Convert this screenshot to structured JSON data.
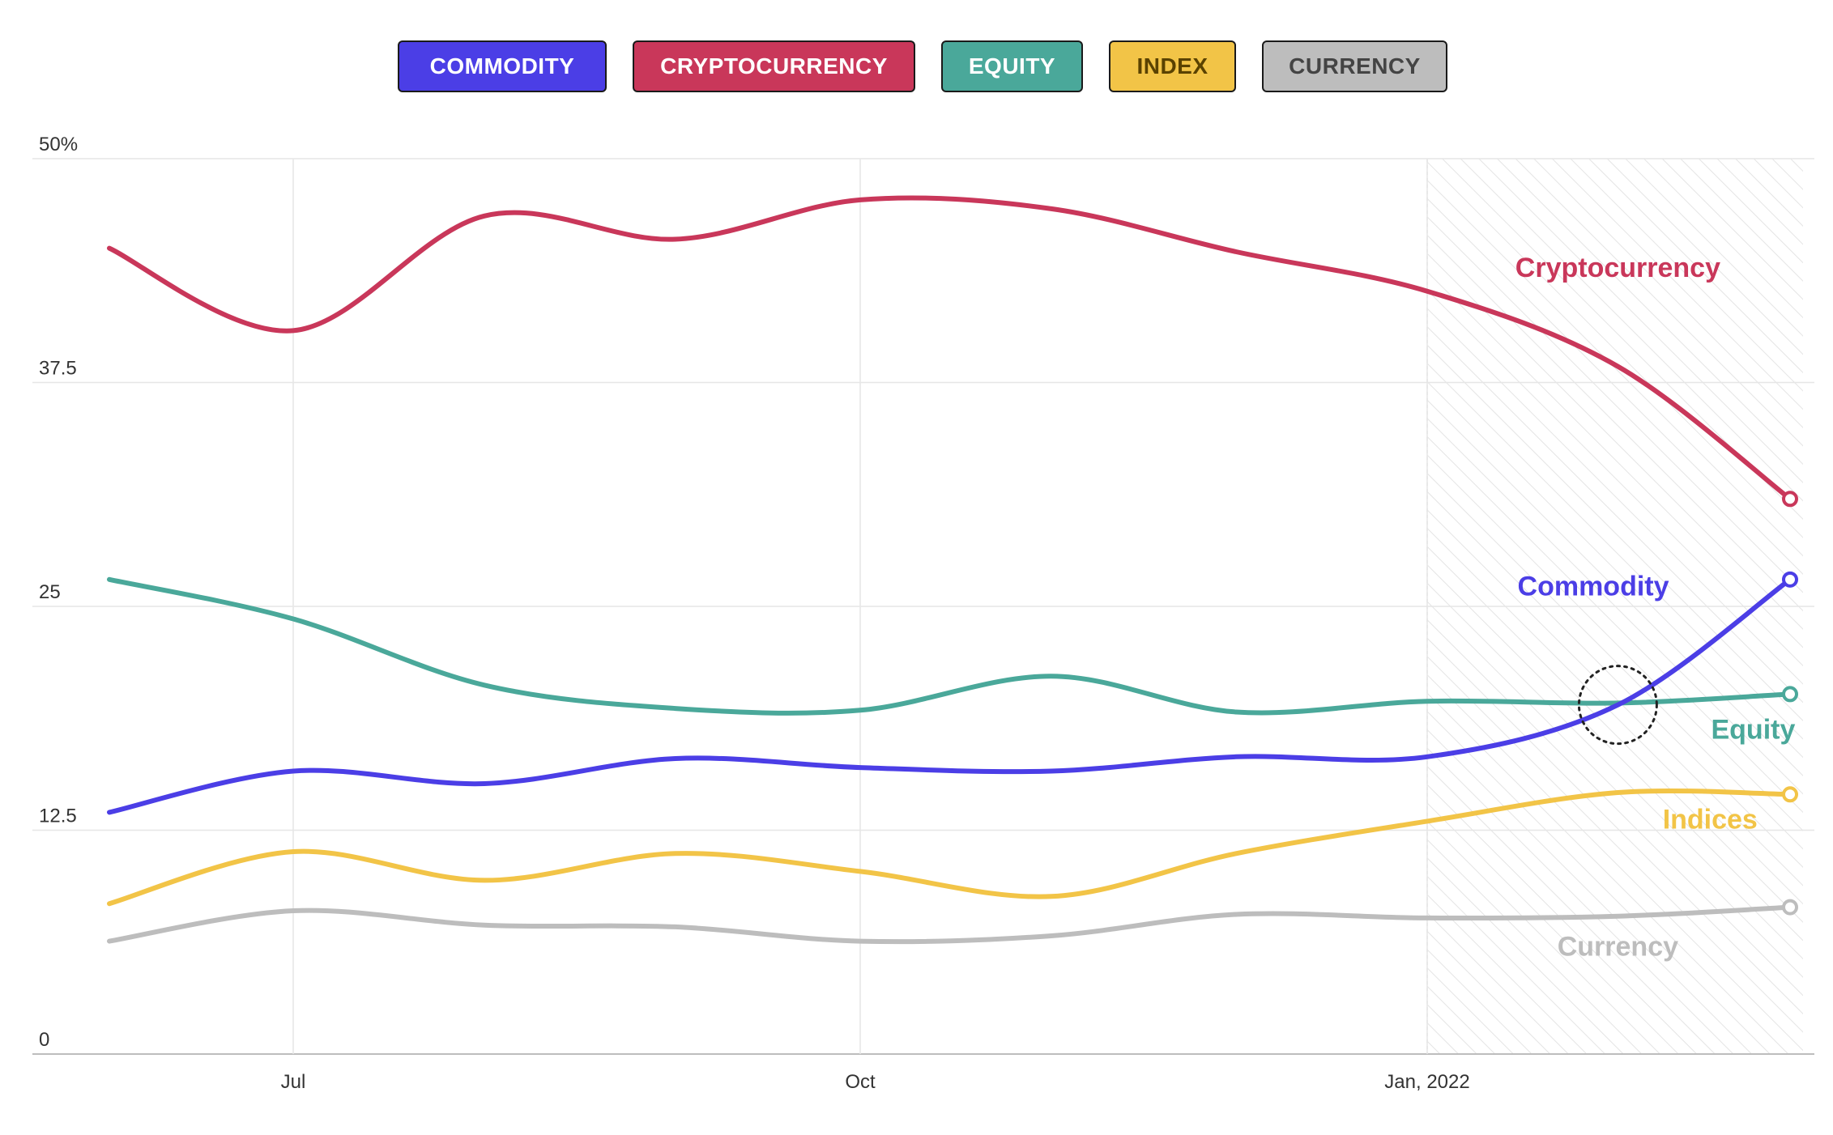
{
  "legend": [
    {
      "key": "commodity",
      "label": "COMMODITY",
      "color": "#4b3ee6",
      "text_color": "#ffffff"
    },
    {
      "key": "cryptocurrency",
      "label": "CRYPTOCURRENCY",
      "color": "#c9375a",
      "text_color": "#ffffff"
    },
    {
      "key": "equity",
      "label": "EQUITY",
      "color": "#4aa89a",
      "text_color": "#ffffff"
    },
    {
      "key": "index",
      "label": "INDEX",
      "color": "#f2c447",
      "text_color": "#5a4200"
    },
    {
      "key": "currency",
      "label": "CURRENCY",
      "color": "#bdbdbd",
      "text_color": "#444444"
    }
  ],
  "chart_data": {
    "type": "line",
    "x": [
      "2021-06-01",
      "2021-07-01",
      "2021-08-01",
      "2021-09-01",
      "2021-10-01",
      "2021-11-01",
      "2021-12-01",
      "2022-01-01",
      "2022-02-01",
      "2022-03-01"
    ],
    "x_ticks": [
      {
        "value": "2021-07-01",
        "label": "Jul"
      },
      {
        "value": "2021-10-01",
        "label": "Oct"
      },
      {
        "value": "2022-01-01",
        "label": "Jan, 2022"
      }
    ],
    "y_ticks": [
      {
        "value": 0,
        "label": "0"
      },
      {
        "value": 12.5,
        "label": "12.5"
      },
      {
        "value": 25,
        "label": "25"
      },
      {
        "value": 37.5,
        "label": "37.5"
      },
      {
        "value": 50,
        "label": "50%"
      }
    ],
    "ylim": [
      0,
      50
    ],
    "xlim": [
      "2021-06-01",
      "2022-03-10"
    ],
    "shaded_region": [
      "2022-01-01",
      "2022-03-10"
    ],
    "grid": true,
    "series": [
      {
        "key": "cryptocurrency",
        "name": "Cryptocurrency",
        "color": "#c9375a",
        "points": [
          [
            "2021-06-01",
            45.0
          ],
          [
            "2021-07-01",
            40.4
          ],
          [
            "2021-08-01",
            46.8
          ],
          [
            "2021-09-01",
            45.5
          ],
          [
            "2021-10-01",
            47.7
          ],
          [
            "2021-11-01",
            47.2
          ],
          [
            "2021-12-01",
            44.8
          ],
          [
            "2022-01-01",
            42.6
          ],
          [
            "2022-02-01",
            38.4
          ],
          [
            "2022-03-01",
            31.0
          ]
        ]
      },
      {
        "key": "commodity",
        "name": "Commodity",
        "color": "#4b3ee6",
        "points": [
          [
            "2021-06-01",
            13.5
          ],
          [
            "2021-07-01",
            15.8
          ],
          [
            "2021-08-01",
            15.1
          ],
          [
            "2021-09-01",
            16.5
          ],
          [
            "2021-10-01",
            16.0
          ],
          [
            "2021-11-01",
            15.8
          ],
          [
            "2021-12-01",
            16.6
          ],
          [
            "2022-01-01",
            16.6
          ],
          [
            "2022-02-01",
            19.5
          ],
          [
            "2022-03-01",
            26.5
          ]
        ]
      },
      {
        "key": "equity",
        "name": "Equity",
        "color": "#4aa89a",
        "points": [
          [
            "2021-06-01",
            26.5
          ],
          [
            "2021-07-01",
            24.3
          ],
          [
            "2021-08-01",
            20.6
          ],
          [
            "2021-09-01",
            19.3
          ],
          [
            "2021-10-01",
            19.2
          ],
          [
            "2021-11-01",
            21.1
          ],
          [
            "2021-12-01",
            19.1
          ],
          [
            "2022-01-01",
            19.7
          ],
          [
            "2022-02-01",
            19.6
          ],
          [
            "2022-03-01",
            20.1
          ]
        ]
      },
      {
        "key": "index",
        "name": "Indices",
        "color": "#f2c447",
        "points": [
          [
            "2021-06-01",
            8.4
          ],
          [
            "2021-07-01",
            11.3
          ],
          [
            "2021-08-01",
            9.7
          ],
          [
            "2021-09-01",
            11.2
          ],
          [
            "2021-10-01",
            10.2
          ],
          [
            "2021-11-01",
            8.8
          ],
          [
            "2021-12-01",
            11.2
          ],
          [
            "2022-01-01",
            13.0
          ],
          [
            "2022-02-01",
            14.6
          ],
          [
            "2022-03-01",
            14.5
          ]
        ]
      },
      {
        "key": "currency",
        "name": "Currency",
        "color": "#bdbdbd",
        "points": [
          [
            "2021-06-01",
            6.3
          ],
          [
            "2021-07-01",
            8.0
          ],
          [
            "2021-08-01",
            7.2
          ],
          [
            "2021-09-01",
            7.1
          ],
          [
            "2021-10-01",
            6.3
          ],
          [
            "2021-11-01",
            6.6
          ],
          [
            "2021-12-01",
            7.8
          ],
          [
            "2022-01-01",
            7.6
          ],
          [
            "2022-02-01",
            7.7
          ],
          [
            "2022-03-01",
            8.2
          ]
        ]
      }
    ],
    "series_labels": [
      {
        "key": "cryptocurrency",
        "text": "Cryptocurrency",
        "color": "#c9375a",
        "anchor": [
          "2022-02-01",
          43.4
        ]
      },
      {
        "key": "commodity",
        "text": "Commodity",
        "color": "#4b3ee6",
        "anchor": [
          "2022-01-28",
          25.6
        ]
      },
      {
        "key": "equity",
        "text": "Equity",
        "color": "#4aa89a",
        "anchor": [
          "2022-02-23",
          17.6
        ]
      },
      {
        "key": "index",
        "text": "Indices",
        "color": "#f2c447",
        "anchor": [
          "2022-02-16",
          12.6
        ]
      },
      {
        "key": "currency",
        "text": "Currency",
        "color": "#bdbdbd",
        "anchor": [
          "2022-02-01",
          5.5
        ]
      }
    ],
    "annotation_marker": {
      "x": "2022-02-01",
      "y": 19.5,
      "style": "dotted-circle"
    }
  }
}
